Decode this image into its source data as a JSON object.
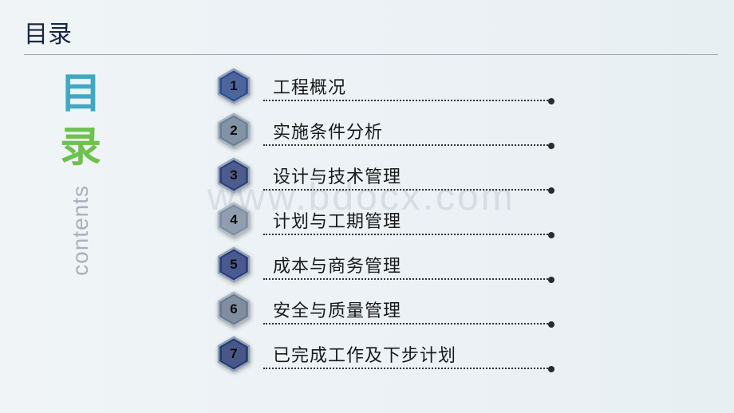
{
  "header": {
    "title": "目录"
  },
  "sidebar": {
    "char1": "目",
    "char2": "录",
    "subtitle": "contents",
    "char1_color": "#3fa8c4",
    "char2_color": "#6ec14d"
  },
  "watermark": "www.bdocx.com",
  "toc": {
    "items": [
      {
        "num": "1",
        "label": "工程概况",
        "fill": "#2e4a8f",
        "stroke": "#8fa2b5"
      },
      {
        "num": "2",
        "label": "实施条件分析",
        "fill": "#6b8094",
        "stroke": "#a5b5c2"
      },
      {
        "num": "3",
        "label": "设计与技术管理",
        "fill": "#2f3f7a",
        "stroke": "#96a9bb"
      },
      {
        "num": "4",
        "label": "计划与工期管理",
        "fill": "#7d8da2",
        "stroke": "#b0bcc7"
      },
      {
        "num": "5",
        "label": "成本与商务管理",
        "fill": "#2b3c7c",
        "stroke": "#93a6b9"
      },
      {
        "num": "6",
        "label": "安全与质量管理",
        "fill": "#6a7b90",
        "stroke": "#a8b6c2"
      },
      {
        "num": "7",
        "label": "已完成工作及下步计划",
        "fill": "#273a73",
        "stroke": "#90a3b6"
      }
    ],
    "label_fontsize": 22,
    "num_fontsize": 17
  },
  "colors": {
    "bg_start": "#f0f4f7",
    "bg_end": "#e8eff3",
    "header_text": "#1a2842",
    "divider": "#9aa5b0",
    "dot": "#2b2b2b"
  }
}
